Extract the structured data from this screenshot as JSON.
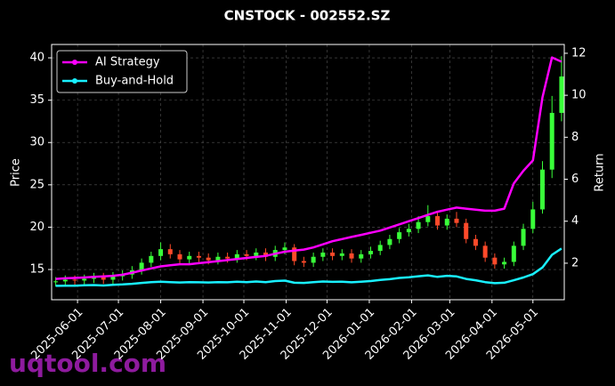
{
  "chart_data": {
    "type": "candlestick",
    "title": "CNSTOCK - 002552.SZ",
    "ylabel": "Price",
    "y2label": "Return",
    "watermark": "uqtool.com",
    "x": [
      "2025-05-16",
      "2025-05-23",
      "2025-05-30",
      "2025-06-06",
      "2025-06-13",
      "2025-06-20",
      "2025-06-27",
      "2025-07-04",
      "2025-07-11",
      "2025-07-18",
      "2025-07-25",
      "2025-08-01",
      "2025-08-08",
      "2025-08-15",
      "2025-08-22",
      "2025-08-29",
      "2025-09-05",
      "2025-09-12",
      "2025-09-19",
      "2025-09-26",
      "2025-10-03",
      "2025-10-10",
      "2025-10-17",
      "2025-10-24",
      "2025-10-31",
      "2025-11-07",
      "2025-11-14",
      "2025-11-21",
      "2025-11-28",
      "2025-12-05",
      "2025-12-12",
      "2025-12-19",
      "2025-12-26",
      "2026-01-02",
      "2026-01-09",
      "2026-01-16",
      "2026-01-23",
      "2026-01-30",
      "2026-02-06",
      "2026-02-13",
      "2026-02-20",
      "2026-02-27",
      "2026-03-06",
      "2026-03-13",
      "2026-03-20",
      "2026-03-27",
      "2026-04-03",
      "2026-04-10",
      "2026-04-17",
      "2026-04-24",
      "2026-05-01",
      "2026-05-08",
      "2026-05-15",
      "2026-05-22"
    ],
    "open": [
      13.5,
      13.6,
      13.8,
      13.7,
      13.9,
      14.1,
      13.8,
      14.2,
      14.4,
      14.9,
      15.8,
      16.6,
      17.4,
      16.8,
      16.2,
      16.6,
      16.4,
      16.1,
      16.5,
      16.3,
      16.8,
      16.6,
      17.0,
      16.5,
      17.3,
      17.6,
      16.0,
      15.8,
      16.5,
      17.0,
      16.6,
      16.9,
      16.3,
      16.8,
      17.2,
      17.9,
      18.6,
      19.4,
      19.8,
      20.6,
      21.3,
      20.2,
      21.0,
      20.5,
      18.6,
      17.8,
      16.4,
      15.6,
      15.9,
      17.8,
      19.8,
      22.1,
      26.8,
      33.5
    ],
    "high": [
      14.1,
      14.3,
      14.3,
      14.4,
      14.6,
      14.6,
      14.7,
      14.9,
      15.4,
      16.3,
      17.1,
      18.2,
      18.0,
      17.3,
      17.1,
      17.1,
      16.9,
      17.0,
      17.0,
      17.3,
      17.3,
      17.5,
      17.5,
      17.8,
      18.2,
      18.0,
      16.5,
      17.0,
      17.5,
      17.5,
      17.4,
      17.4,
      17.3,
      17.7,
      18.4,
      19.1,
      19.9,
      20.4,
      21.3,
      22.6,
      21.8,
      21.5,
      21.8,
      21.0,
      19.1,
      18.3,
      16.9,
      16.4,
      18.3,
      20.4,
      23.0,
      27.8,
      35.5,
      40.2
    ],
    "low": [
      13.0,
      13.1,
      13.2,
      13.2,
      13.4,
      13.3,
      13.3,
      13.7,
      13.9,
      14.4,
      15.3,
      16.1,
      16.3,
      15.7,
      15.7,
      15.9,
      15.6,
      15.6,
      15.8,
      15.8,
      16.1,
      16.1,
      16.0,
      16.0,
      16.8,
      15.5,
      15.3,
      15.3,
      16.0,
      16.1,
      16.1,
      15.8,
      15.8,
      16.3,
      16.7,
      17.4,
      18.1,
      18.9,
      19.3,
      20.1,
      19.7,
      19.7,
      20.0,
      18.1,
      17.3,
      15.9,
      15.1,
      15.1,
      15.4,
      17.3,
      19.3,
      21.6,
      25.8,
      32.5
    ],
    "close": [
      13.6,
      13.8,
      13.7,
      13.9,
      14.1,
      13.8,
      14.2,
      14.4,
      14.9,
      15.8,
      16.6,
      17.4,
      16.8,
      16.2,
      16.6,
      16.4,
      16.1,
      16.5,
      16.3,
      16.8,
      16.6,
      17.0,
      16.5,
      17.3,
      17.6,
      16.0,
      15.8,
      16.5,
      17.0,
      16.6,
      16.9,
      16.3,
      16.8,
      17.2,
      17.9,
      18.6,
      19.4,
      19.8,
      20.6,
      21.3,
      20.2,
      21.0,
      20.5,
      18.6,
      17.8,
      16.4,
      15.6,
      15.9,
      17.8,
      19.8,
      22.1,
      26.8,
      33.5,
      37.8
    ],
    "up_color": "#39ff39",
    "down_color": "#ff4a2a",
    "series": [
      {
        "name": "AI Strategy",
        "color": "#ff00ff",
        "axis": "y2",
        "values": [
          1.25,
          1.28,
          1.3,
          1.32,
          1.35,
          1.37,
          1.4,
          1.45,
          1.55,
          1.65,
          1.75,
          1.85,
          1.9,
          1.95,
          1.95,
          2.0,
          2.05,
          2.1,
          2.15,
          2.2,
          2.25,
          2.3,
          2.35,
          2.45,
          2.55,
          2.6,
          2.65,
          2.75,
          2.9,
          3.05,
          3.15,
          3.25,
          3.35,
          3.45,
          3.55,
          3.7,
          3.85,
          4.0,
          4.15,
          4.3,
          4.45,
          4.55,
          4.65,
          4.6,
          4.55,
          4.5,
          4.5,
          4.6,
          5.8,
          6.4,
          6.9,
          9.9,
          11.8,
          11.6
        ]
      },
      {
        "name": "Buy-and-Hold",
        "color": "#19f0ff",
        "axis": "y2",
        "values": [
          0.92,
          0.93,
          0.93,
          0.95,
          0.96,
          0.94,
          0.97,
          0.99,
          1.02,
          1.06,
          1.1,
          1.12,
          1.1,
          1.08,
          1.1,
          1.09,
          1.08,
          1.1,
          1.09,
          1.12,
          1.1,
          1.13,
          1.1,
          1.15,
          1.17,
          1.07,
          1.06,
          1.1,
          1.13,
          1.11,
          1.12,
          1.09,
          1.12,
          1.15,
          1.2,
          1.24,
          1.3,
          1.33,
          1.38,
          1.42,
          1.35,
          1.4,
          1.37,
          1.25,
          1.19,
          1.1,
          1.05,
          1.07,
          1.19,
          1.32,
          1.48,
          1.8,
          2.4,
          2.7
        ]
      }
    ],
    "xlim": [
      "2025-05-13",
      "2026-05-24"
    ],
    "xticks": [
      "2025-06-01",
      "2025-07-01",
      "2025-08-01",
      "2025-09-01",
      "2025-10-01",
      "2025-11-01",
      "2025-12-01",
      "2026-01-01",
      "2026-02-01",
      "2026-03-01",
      "2026-04-01",
      "2026-05-01"
    ],
    "ylim": [
      11.43,
      41.58
    ],
    "yticks": [
      15,
      20,
      25,
      30,
      35,
      40
    ],
    "y2lim": [
      0.26,
      12.42
    ],
    "y2ticks": [
      2,
      4,
      6,
      8,
      10,
      12
    ],
    "grid": true,
    "legend": "upper left"
  }
}
